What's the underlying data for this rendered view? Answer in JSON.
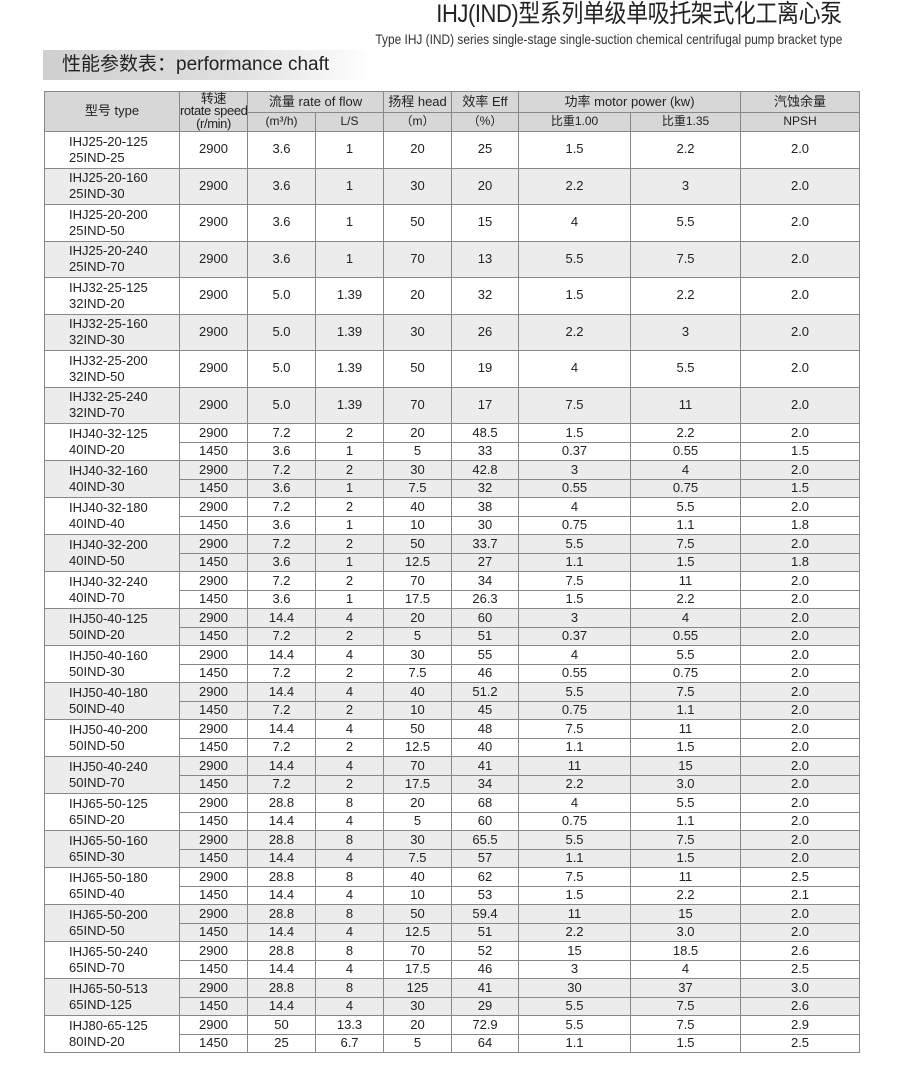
{
  "header": {
    "title_cn": "IHJ(IND)型系列单级单吸托架式化工离心泵",
    "title_en": "Type IHJ (IND) series single-stage single-suction chemical centrifugal pump bracket type",
    "section_title": "性能参数表：performance chaft"
  },
  "table": {
    "columns": {
      "type": "型号 type",
      "speed_cn": "转速",
      "speed_en": "rotate speed",
      "speed_unit": "(r/min)",
      "flow": "流量 rate of flow",
      "flow_m3h": "(m³/h)",
      "flow_ls": "L/S",
      "head": "扬程 head",
      "head_unit": "（m）",
      "eff": "效率 Eff",
      "eff_unit": "（%）",
      "power": "功率 motor power (kw)",
      "power_100": "比重1.00",
      "power_135": "比重1.35",
      "npsh_cn": "汽蚀余量",
      "npsh_en": "NPSH"
    },
    "models": [
      {
        "type": [
          "IHJ25-20-125",
          "25IND-25"
        ],
        "rows": [
          [
            "2900",
            "3.6",
            "1",
            "20",
            "25",
            "1.5",
            "2.2",
            "2.0"
          ]
        ]
      },
      {
        "type": [
          "IHJ25-20-160",
          "25IND-30"
        ],
        "rows": [
          [
            "2900",
            "3.6",
            "1",
            "30",
            "20",
            "2.2",
            "3",
            "2.0"
          ]
        ]
      },
      {
        "type": [
          "IHJ25-20-200",
          "25IND-50"
        ],
        "rows": [
          [
            "2900",
            "3.6",
            "1",
            "50",
            "15",
            "4",
            "5.5",
            "2.0"
          ]
        ]
      },
      {
        "type": [
          "IHJ25-20-240",
          "25IND-70"
        ],
        "rows": [
          [
            "2900",
            "3.6",
            "1",
            "70",
            "13",
            "5.5",
            "7.5",
            "2.0"
          ]
        ]
      },
      {
        "type": [
          "IHJ32-25-125",
          "32IND-20"
        ],
        "rows": [
          [
            "2900",
            "5.0",
            "1.39",
            "20",
            "32",
            "1.5",
            "2.2",
            "2.0"
          ]
        ]
      },
      {
        "type": [
          "IHJ32-25-160",
          "32IND-30"
        ],
        "rows": [
          [
            "2900",
            "5.0",
            "1.39",
            "30",
            "26",
            "2.2",
            "3",
            "2.0"
          ]
        ]
      },
      {
        "type": [
          "IHJ32-25-200",
          "32IND-50"
        ],
        "rows": [
          [
            "2900",
            "5.0",
            "1.39",
            "50",
            "19",
            "4",
            "5.5",
            "2.0"
          ]
        ]
      },
      {
        "type": [
          "IHJ32-25-240",
          "32IND-70"
        ],
        "rows": [
          [
            "2900",
            "5.0",
            "1.39",
            "70",
            "17",
            "7.5",
            "11",
            "2.0"
          ]
        ]
      },
      {
        "type": [
          "IHJ40-32-125",
          "40IND-20"
        ],
        "rows": [
          [
            "2900",
            "7.2",
            "2",
            "20",
            "48.5",
            "1.5",
            "2.2",
            "2.0"
          ],
          [
            "1450",
            "3.6",
            "1",
            "5",
            "33",
            "0.37",
            "0.55",
            "1.5"
          ]
        ]
      },
      {
        "type": [
          "IHJ40-32-160",
          "40IND-30"
        ],
        "rows": [
          [
            "2900",
            "7.2",
            "2",
            "30",
            "42.8",
            "3",
            "4",
            "2.0"
          ],
          [
            "1450",
            "3.6",
            "1",
            "7.5",
            "32",
            "0.55",
            "0.75",
            "1.5"
          ]
        ]
      },
      {
        "type": [
          "IHJ40-32-180",
          "40IND-40"
        ],
        "rows": [
          [
            "2900",
            "7.2",
            "2",
            "40",
            "38",
            "4",
            "5.5",
            "2.0"
          ],
          [
            "1450",
            "3.6",
            "1",
            "10",
            "30",
            "0.75",
            "1.1",
            "1.8"
          ]
        ]
      },
      {
        "type": [
          "IHJ40-32-200",
          "40IND-50"
        ],
        "rows": [
          [
            "2900",
            "7.2",
            "2",
            "50",
            "33.7",
            "5.5",
            "7.5",
            "2.0"
          ],
          [
            "1450",
            "3.6",
            "1",
            "12.5",
            "27",
            "1.1",
            "1.5",
            "1.8"
          ]
        ]
      },
      {
        "type": [
          "IHJ40-32-240",
          "40IND-70"
        ],
        "rows": [
          [
            "2900",
            "7.2",
            "2",
            "70",
            "34",
            "7.5",
            "11",
            "2.0"
          ],
          [
            "1450",
            "3.6",
            "1",
            "17.5",
            "26.3",
            "1.5",
            "2.2",
            "2.0"
          ]
        ]
      },
      {
        "type": [
          "IHJ50-40-125",
          "50IND-20"
        ],
        "rows": [
          [
            "2900",
            "14.4",
            "4",
            "20",
            "60",
            "3",
            "4",
            "2.0"
          ],
          [
            "1450",
            "7.2",
            "2",
            "5",
            "51",
            "0.37",
            "0.55",
            "2.0"
          ]
        ]
      },
      {
        "type": [
          "IHJ50-40-160",
          "50IND-30"
        ],
        "rows": [
          [
            "2900",
            "14.4",
            "4",
            "30",
            "55",
            "4",
            "5.5",
            "2.0"
          ],
          [
            "1450",
            "7.2",
            "2",
            "7.5",
            "46",
            "0.55",
            "0.75",
            "2.0"
          ]
        ]
      },
      {
        "type": [
          "IHJ50-40-180",
          "50IND-40"
        ],
        "rows": [
          [
            "2900",
            "14.4",
            "4",
            "40",
            "51.2",
            "5.5",
            "7.5",
            "2.0"
          ],
          [
            "1450",
            "7.2",
            "2",
            "10",
            "45",
            "0.75",
            "1.1",
            "2.0"
          ]
        ]
      },
      {
        "type": [
          "IHJ50-40-200",
          "50IND-50"
        ],
        "rows": [
          [
            "2900",
            "14.4",
            "4",
            "50",
            "48",
            "7.5",
            "11",
            "2.0"
          ],
          [
            "1450",
            "7.2",
            "2",
            "12.5",
            "40",
            "1.1",
            "1.5",
            "2.0"
          ]
        ]
      },
      {
        "type": [
          "IHJ50-40-240",
          "50IND-70"
        ],
        "rows": [
          [
            "2900",
            "14.4",
            "4",
            "70",
            "41",
            "11",
            "15",
            "2.0"
          ],
          [
            "1450",
            "7.2",
            "2",
            "17.5",
            "34",
            "2.2",
            "3.0",
            "2.0"
          ]
        ]
      },
      {
        "type": [
          "IHJ65-50-125",
          "65IND-20"
        ],
        "rows": [
          [
            "2900",
            "28.8",
            "8",
            "20",
            "68",
            "4",
            "5.5",
            "2.0"
          ],
          [
            "1450",
            "14.4",
            "4",
            "5",
            "60",
            "0.75",
            "1.1",
            "2.0"
          ]
        ]
      },
      {
        "type": [
          "IHJ65-50-160",
          "65IND-30"
        ],
        "rows": [
          [
            "2900",
            "28.8",
            "8",
            "30",
            "65.5",
            "5.5",
            "7.5",
            "2.0"
          ],
          [
            "1450",
            "14.4",
            "4",
            "7.5",
            "57",
            "1.1",
            "1.5",
            "2.0"
          ]
        ]
      },
      {
        "type": [
          "IHJ65-50-180",
          "65IND-40"
        ],
        "rows": [
          [
            "2900",
            "28.8",
            "8",
            "40",
            "62",
            "7.5",
            "11",
            "2.5"
          ],
          [
            "1450",
            "14.4",
            "4",
            "10",
            "53",
            "1.5",
            "2.2",
            "2.1"
          ]
        ]
      },
      {
        "type": [
          "IHJ65-50-200",
          "65IND-50"
        ],
        "rows": [
          [
            "2900",
            "28.8",
            "8",
            "50",
            "59.4",
            "11",
            "15",
            "2.0"
          ],
          [
            "1450",
            "14.4",
            "4",
            "12.5",
            "51",
            "2.2",
            "3.0",
            "2.0"
          ]
        ]
      },
      {
        "type": [
          "IHJ65-50-240",
          "65IND-70"
        ],
        "rows": [
          [
            "2900",
            "28.8",
            "8",
            "70",
            "52",
            "15",
            "18.5",
            "2.6"
          ],
          [
            "1450",
            "14.4",
            "4",
            "17.5",
            "46",
            "3",
            "4",
            "2.5"
          ]
        ]
      },
      {
        "type": [
          "IHJ65-50-513",
          "65IND-125"
        ],
        "rows": [
          [
            "2900",
            "28.8",
            "8",
            "125",
            "41",
            "30",
            "37",
            "3.0"
          ],
          [
            "1450",
            "14.4",
            "4",
            "30",
            "29",
            "5.5",
            "7.5",
            "2.6"
          ]
        ]
      },
      {
        "type": [
          "IHJ80-65-125",
          "80IND-20"
        ],
        "rows": [
          [
            "2900",
            "50",
            "13.3",
            "20",
            "72.9",
            "5.5",
            "7.5",
            "2.9"
          ],
          [
            "1450",
            "25",
            "6.7",
            "5",
            "64",
            "1.1",
            "1.5",
            "2.5"
          ]
        ]
      }
    ]
  },
  "colors": {
    "header_bg": "#d7d7d7",
    "row_shade": "#ececec",
    "border": "#888888"
  }
}
